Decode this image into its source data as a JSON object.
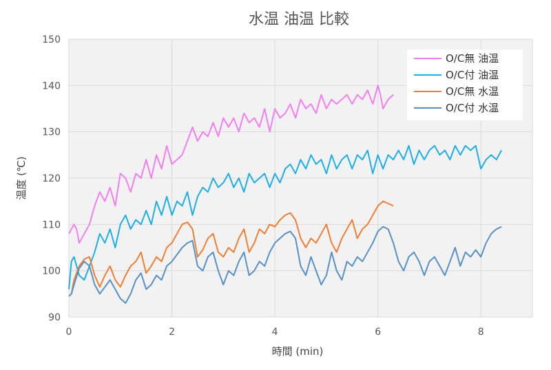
{
  "chart_data": {
    "type": "line",
    "title": "水温 油温 比較",
    "xlabel": "時間 (min)",
    "ylabel": "温度 (℃)",
    "xlim": [
      0,
      9
    ],
    "ylim": [
      90,
      150
    ],
    "xticks": [
      0,
      2,
      4,
      6,
      8
    ],
    "yticks": [
      90,
      100,
      110,
      120,
      130,
      140,
      150
    ],
    "grid": true,
    "legend_position": "top-right",
    "plot_background": "#f2f2f2",
    "series": [
      {
        "name": "O/C無 油温",
        "color": "#f27ef2",
        "x": [
          0,
          0.1,
          0.15,
          0.2,
          0.3,
          0.4,
          0.5,
          0.6,
          0.7,
          0.8,
          0.9,
          1.0,
          1.1,
          1.2,
          1.3,
          1.4,
          1.5,
          1.6,
          1.7,
          1.8,
          1.9,
          2.0,
          2.1,
          2.2,
          2.3,
          2.4,
          2.5,
          2.6,
          2.7,
          2.8,
          2.9,
          3.0,
          3.1,
          3.2,
          3.3,
          3.4,
          3.5,
          3.6,
          3.7,
          3.8,
          3.9,
          4.0,
          4.1,
          4.2,
          4.3,
          4.4,
          4.5,
          4.6,
          4.7,
          4.8,
          4.9,
          5.0,
          5.1,
          5.2,
          5.3,
          5.4,
          5.5,
          5.6,
          5.7,
          5.8,
          5.9,
          6.0,
          6.05,
          6.1,
          6.2,
          6.3
        ],
        "y": [
          108,
          110,
          109,
          106,
          108,
          110,
          114,
          117,
          115,
          118,
          114,
          121,
          120,
          117,
          121,
          120,
          124,
          120,
          125,
          122,
          127,
          123,
          124,
          125,
          128,
          131,
          128,
          130,
          129,
          132,
          129,
          133,
          131,
          133,
          130,
          134,
          132,
          133,
          131,
          135,
          130,
          135,
          133,
          134,
          136,
          133,
          137,
          135,
          136,
          134,
          138,
          135,
          137,
          136,
          137,
          138,
          136,
          138,
          137,
          139,
          136,
          140,
          138,
          135,
          137,
          138
        ]
      },
      {
        "name": "O/C付 油温",
        "color": "#1eaee6",
        "x": [
          0,
          0.05,
          0.1,
          0.2,
          0.3,
          0.4,
          0.5,
          0.6,
          0.7,
          0.8,
          0.9,
          1.0,
          1.1,
          1.2,
          1.3,
          1.4,
          1.5,
          1.6,
          1.7,
          1.8,
          1.9,
          2.0,
          2.1,
          2.2,
          2.3,
          2.4,
          2.5,
          2.6,
          2.7,
          2.8,
          2.9,
          3.0,
          3.1,
          3.2,
          3.3,
          3.4,
          3.5,
          3.6,
          3.7,
          3.8,
          3.9,
          4.0,
          4.1,
          4.2,
          4.3,
          4.4,
          4.5,
          4.6,
          4.7,
          4.8,
          4.9,
          5.0,
          5.1,
          5.2,
          5.3,
          5.4,
          5.5,
          5.6,
          5.7,
          5.8,
          5.9,
          6.0,
          6.1,
          6.2,
          6.3,
          6.4,
          6.5,
          6.6,
          6.7,
          6.8,
          6.9,
          7.0,
          7.1,
          7.2,
          7.3,
          7.4,
          7.5,
          7.6,
          7.7,
          7.8,
          7.9,
          8.0,
          8.1,
          8.2,
          8.3,
          8.4
        ],
        "y": [
          96,
          102,
          103,
          99,
          98,
          101,
          104,
          108,
          106,
          109,
          105,
          110,
          112,
          109,
          111,
          110,
          113,
          110,
          115,
          112,
          116,
          112,
          115,
          114,
          117,
          112,
          116,
          118,
          117,
          120,
          118,
          119,
          121,
          118,
          120,
          117,
          121,
          119,
          120,
          121,
          118,
          121,
          119,
          122,
          123,
          121,
          124,
          122,
          125,
          123,
          124,
          121,
          125,
          122,
          124,
          125,
          122,
          125,
          124,
          126,
          121,
          125,
          122,
          125,
          124,
          126,
          124,
          127,
          123,
          126,
          124,
          126,
          127,
          125,
          126,
          124,
          127,
          125,
          127,
          126,
          127,
          122,
          124,
          125,
          124,
          126
        ]
      },
      {
        "name": "O/C無 水温",
        "color": "#f07d32",
        "x": [
          0,
          0.05,
          0.1,
          0.2,
          0.3,
          0.4,
          0.5,
          0.6,
          0.7,
          0.8,
          0.9,
          1.0,
          1.1,
          1.2,
          1.3,
          1.4,
          1.5,
          1.6,
          1.7,
          1.8,
          1.9,
          2.0,
          2.1,
          2.2,
          2.3,
          2.4,
          2.5,
          2.6,
          2.7,
          2.8,
          2.9,
          3.0,
          3.1,
          3.2,
          3.3,
          3.4,
          3.5,
          3.6,
          3.7,
          3.8,
          3.9,
          4.0,
          4.1,
          4.2,
          4.3,
          4.4,
          4.5,
          4.6,
          4.7,
          4.8,
          4.9,
          5.0,
          5.1,
          5.2,
          5.3,
          5.4,
          5.5,
          5.6,
          5.7,
          5.8,
          5.9,
          6.0,
          6.1,
          6.2,
          6.3
        ],
        "y": [
          94.5,
          95,
          98,
          101,
          102.5,
          103,
          99,
          96.5,
          99,
          101,
          98,
          96.5,
          99,
          101,
          102,
          104,
          99.5,
          101,
          103,
          102,
          105,
          106,
          108,
          110,
          110.5,
          109,
          103,
          104.5,
          107,
          108,
          104,
          103,
          105,
          104,
          107,
          109,
          104,
          106,
          109,
          108,
          110,
          109.5,
          111,
          112,
          112.5,
          111,
          107,
          105,
          107,
          106,
          108,
          110,
          106,
          104,
          107,
          109,
          111,
          107,
          109,
          110,
          112,
          114,
          115,
          114.5,
          114
        ]
      },
      {
        "name": "O/C付 水温",
        "color": "#5590c8",
        "x": [
          0,
          0.05,
          0.1,
          0.2,
          0.3,
          0.4,
          0.5,
          0.6,
          0.7,
          0.8,
          0.9,
          1.0,
          1.1,
          1.2,
          1.3,
          1.4,
          1.5,
          1.6,
          1.7,
          1.8,
          1.9,
          2.0,
          2.1,
          2.2,
          2.3,
          2.4,
          2.5,
          2.6,
          2.7,
          2.8,
          2.9,
          3.0,
          3.1,
          3.2,
          3.3,
          3.4,
          3.5,
          3.6,
          3.7,
          3.8,
          3.9,
          4.0,
          4.1,
          4.2,
          4.3,
          4.4,
          4.5,
          4.6,
          4.7,
          4.8,
          4.9,
          5.0,
          5.1,
          5.2,
          5.3,
          5.4,
          5.5,
          5.6,
          5.7,
          5.8,
          5.9,
          6.0,
          6.1,
          6.2,
          6.3,
          6.4,
          6.5,
          6.6,
          6.7,
          6.8,
          6.9,
          7.0,
          7.1,
          7.2,
          7.3,
          7.4,
          7.5,
          7.6,
          7.7,
          7.8,
          7.9,
          8.0,
          8.1,
          8.2,
          8.3,
          8.4
        ],
        "y": [
          94.5,
          95,
          97,
          100.5,
          102,
          101,
          97,
          95,
          96.5,
          98,
          96,
          94,
          93,
          95,
          98,
          99.5,
          96,
          97,
          99,
          98,
          101,
          102,
          103.5,
          105,
          106,
          106.5,
          101,
          100,
          103,
          104,
          100,
          97,
          100,
          99,
          102,
          104,
          99,
          100,
          102,
          101,
          104,
          106,
          107,
          108,
          108.5,
          107,
          101,
          99,
          103,
          100,
          97,
          99,
          104,
          100,
          98,
          102,
          101,
          103,
          102,
          104,
          106,
          108.5,
          109.5,
          109,
          106,
          102,
          100,
          103,
          104,
          102,
          99,
          102,
          103,
          101,
          99,
          102,
          105,
          101,
          104,
          103,
          104.5,
          103,
          106,
          108,
          109,
          109.5
        ]
      }
    ]
  }
}
